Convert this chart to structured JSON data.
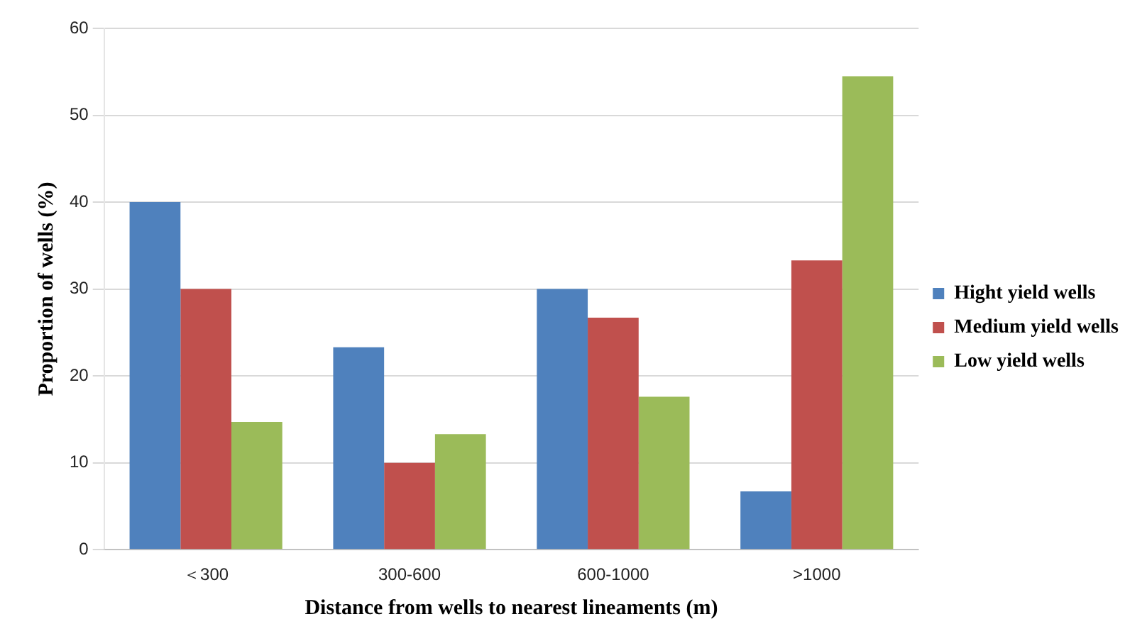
{
  "chart_data": {
    "type": "bar",
    "xlabel": "Distance from wells to nearest lineaments (m)",
    "ylabel": "Proportion of wells (%)",
    "categories": [
      "＜300",
      "300-600",
      "600-1000",
      ">1000"
    ],
    "series": [
      {
        "name": "Hight yield wells",
        "color": "#4f81bd",
        "values": [
          40,
          23.3,
          30,
          6.7
        ]
      },
      {
        "name": "Medium yield wells",
        "color": "#c0504d",
        "values": [
          30,
          10,
          26.7,
          33.3
        ]
      },
      {
        "name": "Low yield wells",
        "color": "#9bbb59",
        "values": [
          14.7,
          13.3,
          17.6,
          54.5
        ]
      }
    ],
    "ylim": [
      0,
      60
    ],
    "yticks": [
      0,
      10,
      20,
      30,
      40,
      50,
      60
    ],
    "grid": "y",
    "legend": "right"
  }
}
